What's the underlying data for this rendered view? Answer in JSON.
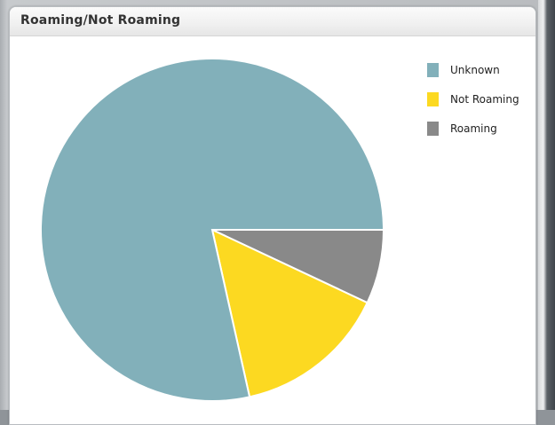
{
  "panel": {
    "title": "Roaming/Not Roaming"
  },
  "chart_data": {
    "type": "pie",
    "title": "Roaming/Not Roaming",
    "slices": [
      {
        "label": "Unknown",
        "value": 78.5,
        "color": "#82b0ba"
      },
      {
        "label": "Not Roaming",
        "value": 14.5,
        "color": "#fcd921"
      },
      {
        "label": "Roaming",
        "value": 7.0,
        "color": "#898989"
      }
    ],
    "legend_placement": "top-right"
  }
}
